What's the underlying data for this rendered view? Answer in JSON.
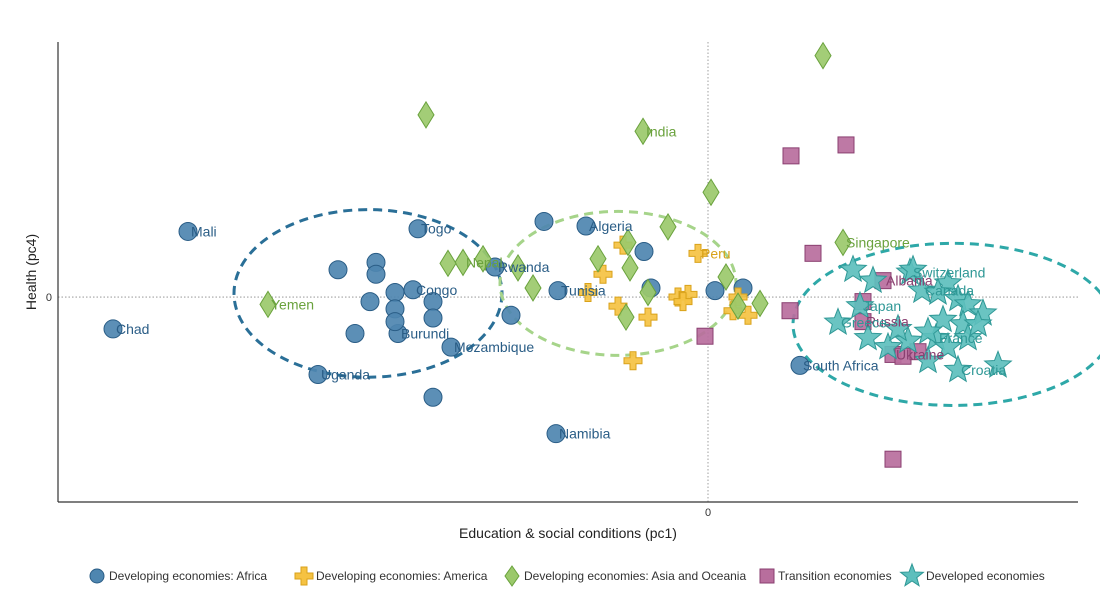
{
  "chart_data": {
    "type": "scatter",
    "xlabel": "Education & social conditions (pc1)",
    "ylabel": "Health (pc4)",
    "xlim": [
      -6.5,
      3.7
    ],
    "ylim": [
      -2.25,
      2.8
    ],
    "x_ticks": [
      {
        "value": 0,
        "label": "0"
      }
    ],
    "y_ticks": [
      {
        "value": 0,
        "label": "0"
      }
    ],
    "zero_lines": true,
    "legend_position": "bottom",
    "series": [
      {
        "name": "Developing economies: Africa",
        "marker": "circle",
        "color": "#4e86b0",
        "stroke": "#2a5d86",
        "points": [
          {
            "x": -5.95,
            "y": -0.35,
            "label": "Chad"
          },
          {
            "x": -5.2,
            "y": 0.72,
            "label": "Mali"
          },
          {
            "x": -2.9,
            "y": 0.75,
            "label": "Togo"
          },
          {
            "x": -2.95,
            "y": 0.08,
            "label": "Congo"
          },
          {
            "x": -3.1,
            "y": -0.4,
            "label": "Burundi"
          },
          {
            "x": -2.57,
            "y": -0.55,
            "label": "Mozambique"
          },
          {
            "x": -3.9,
            "y": -0.85,
            "label": "Uganda"
          },
          {
            "x": -2.13,
            "y": 0.33,
            "label": "Rwanda"
          },
          {
            "x": -1.5,
            "y": 0.07,
            "label": "Tunisia"
          },
          {
            "x": -1.22,
            "y": 0.78,
            "label": "Algeria"
          },
          {
            "x": -1.52,
            "y": -1.5,
            "label": "Namibia"
          },
          {
            "x": 0.92,
            "y": -0.75,
            "label": "South Africa"
          },
          {
            "x": -3.7,
            "y": 0.3,
            "label": ""
          },
          {
            "x": -3.32,
            "y": 0.38,
            "label": ""
          },
          {
            "x": -3.38,
            "y": -0.05,
            "label": ""
          },
          {
            "x": -3.13,
            "y": 0.05,
            "label": ""
          },
          {
            "x": -2.75,
            "y": -0.05,
            "label": ""
          },
          {
            "x": -2.75,
            "y": -0.23,
            "label": ""
          },
          {
            "x": -3.13,
            "y": -0.13,
            "label": ""
          },
          {
            "x": -3.53,
            "y": -0.4,
            "label": ""
          },
          {
            "x": -3.13,
            "y": -0.27,
            "label": ""
          },
          {
            "x": -3.32,
            "y": 0.25,
            "label": ""
          },
          {
            "x": -1.97,
            "y": -0.2,
            "label": ""
          },
          {
            "x": -1.64,
            "y": 0.83,
            "label": ""
          },
          {
            "x": -0.64,
            "y": 0.5,
            "label": ""
          },
          {
            "x": -0.57,
            "y": 0.1,
            "label": ""
          },
          {
            "x": 0.07,
            "y": 0.07,
            "label": ""
          },
          {
            "x": 0.35,
            "y": 0.1,
            "label": ""
          },
          {
            "x": -2.75,
            "y": -1.1,
            "label": ""
          }
        ]
      },
      {
        "name": "Developing economies: America",
        "marker": "cross",
        "color": "#f5c242",
        "stroke": "#d9a21a",
        "points": [
          {
            "x": -0.1,
            "y": 0.48,
            "label": "Peru"
          },
          {
            "x": -1.05,
            "y": 0.25,
            "label": ""
          },
          {
            "x": -0.85,
            "y": 0.57,
            "label": ""
          },
          {
            "x": -1.2,
            "y": 0.05,
            "label": ""
          },
          {
            "x": -0.9,
            "y": -0.1,
            "label": ""
          },
          {
            "x": -0.6,
            "y": -0.22,
            "label": ""
          },
          {
            "x": -0.75,
            "y": -0.7,
            "label": ""
          },
          {
            "x": -0.3,
            "y": 0.0,
            "label": ""
          },
          {
            "x": -0.2,
            "y": 0.03,
            "label": ""
          },
          {
            "x": -0.25,
            "y": -0.05,
            "label": ""
          },
          {
            "x": 0.25,
            "y": -0.15,
            "label": ""
          },
          {
            "x": 0.4,
            "y": -0.2,
            "label": ""
          },
          {
            "x": 0.3,
            "y": 0.0,
            "label": ""
          }
        ]
      },
      {
        "name": "Developing economies: Asia and Oceania",
        "marker": "diamond",
        "color": "#9bc96b",
        "stroke": "#6aa23d",
        "points": [
          {
            "x": -0.65,
            "y": 1.82,
            "label": "India"
          },
          {
            "x": 1.35,
            "y": 0.6,
            "label": "Singapore"
          },
          {
            "x": -4.4,
            "y": -0.08,
            "label": "Yemen"
          },
          {
            "x": -2.45,
            "y": 0.38,
            "label": "Nepal"
          },
          {
            "x": 1.15,
            "y": 2.65,
            "label": ""
          },
          {
            "x": -2.82,
            "y": 2.0,
            "label": ""
          },
          {
            "x": 0.03,
            "y": 1.15,
            "label": ""
          },
          {
            "x": -0.4,
            "y": 0.77,
            "label": ""
          },
          {
            "x": -0.8,
            "y": 0.6,
            "label": ""
          },
          {
            "x": -1.1,
            "y": 0.42,
            "label": ""
          },
          {
            "x": -2.6,
            "y": 0.37,
            "label": ""
          },
          {
            "x": -2.25,
            "y": 0.42,
            "label": ""
          },
          {
            "x": -1.9,
            "y": 0.32,
            "label": ""
          },
          {
            "x": -1.75,
            "y": 0.1,
            "label": ""
          },
          {
            "x": -0.78,
            "y": 0.32,
            "label": ""
          },
          {
            "x": -0.6,
            "y": 0.05,
            "label": ""
          },
          {
            "x": -0.82,
            "y": -0.22,
            "label": ""
          },
          {
            "x": 0.18,
            "y": 0.22,
            "label": ""
          },
          {
            "x": 0.3,
            "y": -0.1,
            "label": ""
          },
          {
            "x": 0.52,
            "y": -0.07,
            "label": ""
          }
        ]
      },
      {
        "name": "Transition economies",
        "marker": "square",
        "color": "#b86e9d",
        "stroke": "#8a3f70",
        "points": [
          {
            "x": 1.75,
            "y": 0.18,
            "label": "Albania"
          },
          {
            "x": 1.55,
            "y": -0.27,
            "label": "Russia"
          },
          {
            "x": 1.85,
            "y": -0.63,
            "label": "Ukraine"
          },
          {
            "x": 0.83,
            "y": 1.55,
            "label": ""
          },
          {
            "x": 1.38,
            "y": 1.67,
            "label": ""
          },
          {
            "x": 1.05,
            "y": 0.48,
            "label": ""
          },
          {
            "x": 0.82,
            "y": -0.15,
            "label": ""
          },
          {
            "x": -0.03,
            "y": -0.43,
            "label": ""
          },
          {
            "x": 1.55,
            "y": -0.05,
            "label": ""
          },
          {
            "x": 1.85,
            "y": -1.78,
            "label": ""
          },
          {
            "x": 1.95,
            "y": -0.65,
            "label": ""
          },
          {
            "x": 2.1,
            "y": -0.6,
            "label": ""
          }
        ]
      },
      {
        "name": "Developed economies",
        "marker": "star",
        "color": "#5dbfbd",
        "stroke": "#2f9896",
        "points": [
          {
            "x": 2.02,
            "y": 0.27,
            "label": "Switzerland"
          },
          {
            "x": 2.14,
            "y": 0.07,
            "label": "Canada"
          },
          {
            "x": 1.52,
            "y": -0.1,
            "label": "Japan"
          },
          {
            "x": 1.3,
            "y": -0.28,
            "label": "Greece"
          },
          {
            "x": 2.28,
            "y": -0.45,
            "label": "France"
          },
          {
            "x": 2.5,
            "y": -0.8,
            "label": "Croatia"
          },
          {
            "x": 1.45,
            "y": 0.3,
            "label": ""
          },
          {
            "x": 1.65,
            "y": 0.18,
            "label": ""
          },
          {
            "x": 2.05,
            "y": 0.3,
            "label": ""
          },
          {
            "x": 2.4,
            "y": 0.15,
            "label": ""
          },
          {
            "x": 2.5,
            "y": -0.02,
            "label": ""
          },
          {
            "x": 2.6,
            "y": -0.08,
            "label": ""
          },
          {
            "x": 2.75,
            "y": -0.18,
            "label": ""
          },
          {
            "x": 2.55,
            "y": -0.3,
            "label": ""
          },
          {
            "x": 2.35,
            "y": -0.25,
            "label": ""
          },
          {
            "x": 2.2,
            "y": -0.38,
            "label": ""
          },
          {
            "x": 2.0,
            "y": -0.48,
            "label": ""
          },
          {
            "x": 1.8,
            "y": -0.55,
            "label": ""
          },
          {
            "x": 1.6,
            "y": -0.45,
            "label": ""
          },
          {
            "x": 2.4,
            "y": -0.55,
            "label": ""
          },
          {
            "x": 2.6,
            "y": -0.45,
            "label": ""
          },
          {
            "x": 2.9,
            "y": -0.75,
            "label": ""
          },
          {
            "x": 2.2,
            "y": -0.7,
            "label": ""
          },
          {
            "x": 1.9,
            "y": -0.35,
            "label": ""
          },
          {
            "x": 2.3,
            "y": 0.05,
            "label": ""
          },
          {
            "x": 2.7,
            "y": -0.3,
            "label": ""
          }
        ]
      }
    ],
    "annotations": [
      {
        "shape": "dashed-ellipse",
        "color": "#2a6f97",
        "center": [
          -3.4,
          0.04
        ],
        "radii": [
          1.34,
          0.92
        ]
      },
      {
        "shape": "dashed-ellipse",
        "color": "#a6d48a",
        "center": [
          -0.9,
          0.15
        ],
        "radii": [
          1.18,
          0.79
        ]
      },
      {
        "shape": "dashed-ellipse",
        "color": "#2ea8a8",
        "center": [
          2.45,
          -0.3
        ],
        "radii": [
          1.6,
          0.89
        ]
      }
    ]
  }
}
